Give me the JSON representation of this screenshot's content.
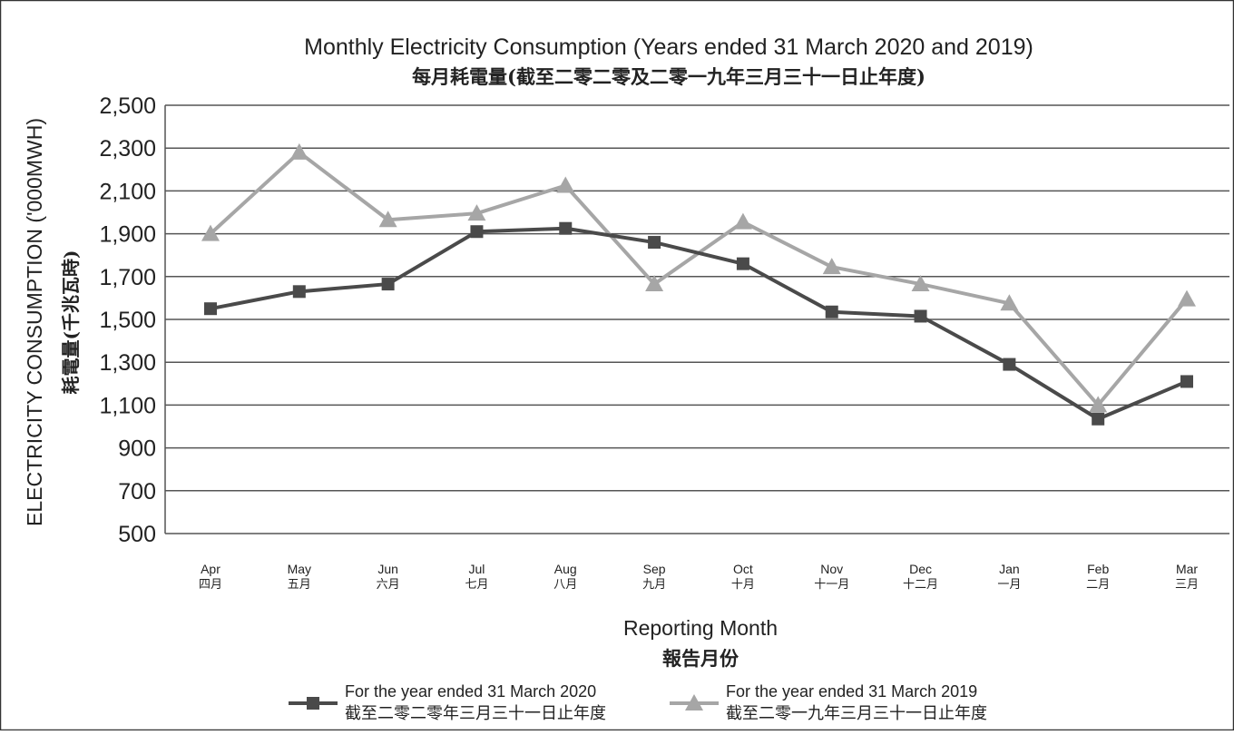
{
  "chart_data": {
    "type": "line",
    "title": "Monthly Electricity Consumption (Years ended 31 March 2020 and 2019)",
    "subtitle": "每月耗電量(截至二零二零及二零一九年三月三十一日止年度)",
    "ylabel": "ELECTRICITY CONSUMPTION ('000MWH)",
    "ylabel_zh": "耗電量(千兆瓦時)",
    "xlabel": "Reporting Month",
    "xlabel_zh": "報告月份",
    "ylim": [
      500,
      2500
    ],
    "yticks": [
      500,
      700,
      900,
      1100,
      1300,
      1500,
      1700,
      1900,
      2100,
      2300,
      2500
    ],
    "ytick_labels": [
      "500",
      "700",
      "900",
      "1,100",
      "1,300",
      "1,500",
      "1,700",
      "1,900",
      "2,100",
      "2,300",
      "2,500"
    ],
    "grid": true,
    "legend_position": "bottom",
    "categories": [
      "Apr",
      "May",
      "Jun",
      "Jul",
      "Aug",
      "Sep",
      "Oct",
      "Nov",
      "Dec",
      "Jan",
      "Feb",
      "Mar"
    ],
    "categories_zh": [
      "四月",
      "五月",
      "六月",
      "七月",
      "八月",
      "九月",
      "十月",
      "十一月",
      "十二月",
      "一月",
      "二月",
      "三月"
    ],
    "series": [
      {
        "name": "For the year ended 31 March 2020",
        "name_zh": "截至二零二零年三月三十一日止年度",
        "color": "#4a4a4a",
        "marker": "square",
        "values": [
          1550,
          1630,
          1665,
          1910,
          1925,
          1860,
          1760,
          1535,
          1515,
          1290,
          1035,
          1210
        ]
      },
      {
        "name": "For the year ended 31 March 2019",
        "name_zh": "截至二零一九年三月三十一日止年度",
        "color": "#a6a6a6",
        "marker": "triangle",
        "values": [
          1900,
          2280,
          1965,
          1995,
          2125,
          1665,
          1955,
          1745,
          1665,
          1575,
          1100,
          1595
        ]
      }
    ]
  }
}
